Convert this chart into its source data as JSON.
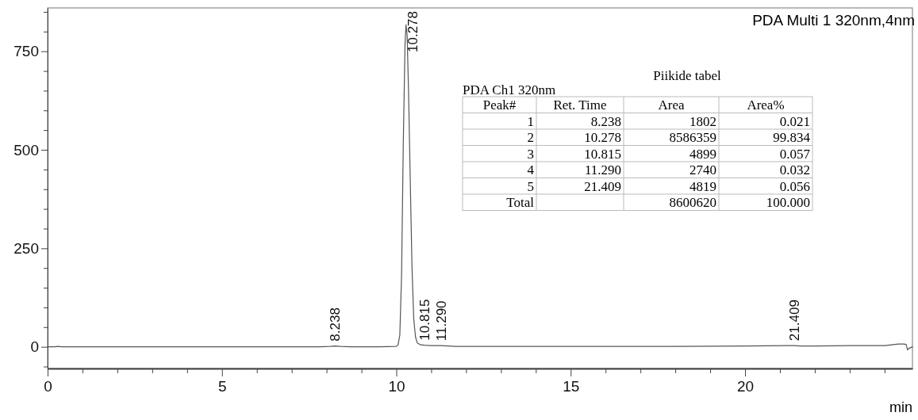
{
  "chart_data": {
    "type": "line",
    "title": "PDA Multi 1 320nm,4nm",
    "xlabel": "min",
    "x": [
      0,
      0.2,
      0.3,
      0.4,
      1,
      2,
      3,
      4,
      5,
      6,
      7,
      7.8,
      8.1,
      8.238,
      8.4,
      8.7,
      9.5,
      10.0,
      10.05,
      10.1,
      10.15,
      10.2,
      10.25,
      10.278,
      10.31,
      10.35,
      10.4,
      10.45,
      10.5,
      10.55,
      10.6,
      10.7,
      10.815,
      11,
      11.29,
      11.5,
      11.7,
      12,
      14,
      16,
      18,
      20,
      21.2,
      21.409,
      21.6,
      22,
      23,
      24,
      24.2,
      24.4,
      24.55,
      24.62,
      24.66,
      24.7,
      24.8
    ],
    "series": [
      {
        "color": "#555555",
        "values": [
          0,
          0,
          1,
          0,
          0,
          0,
          0,
          0,
          0,
          0,
          0,
          0,
          1,
          2,
          1,
          0,
          0,
          1,
          5,
          30,
          180,
          520,
          770,
          817,
          790,
          650,
          420,
          200,
          70,
          25,
          10,
          5,
          4,
          3,
          3,
          2,
          1,
          1,
          1,
          1,
          1,
          2,
          3,
          3,
          2,
          2,
          3,
          3,
          5,
          7,
          7,
          6,
          -8,
          -4,
          0
        ]
      }
    ],
    "xlim": [
      0,
      24.8
    ],
    "ylim": [
      -55,
      860
    ],
    "xticks": [
      0,
      {
        "value": 1,
        "label": null
      },
      {
        "value": 2,
        "label": null
      },
      {
        "value": 3,
        "label": null
      },
      {
        "value": 4,
        "label": null
      },
      5,
      {
        "value": 6,
        "label": null
      },
      {
        "value": 7,
        "label": null
      },
      {
        "value": 8,
        "label": null
      },
      {
        "value": 9,
        "label": null
      },
      10,
      {
        "value": 11,
        "label": null
      },
      {
        "value": 12,
        "label": null
      },
      {
        "value": 13,
        "label": null
      },
      {
        "value": 14,
        "label": null
      },
      15,
      {
        "value": 16,
        "label": null
      },
      {
        "value": 17,
        "label": null
      },
      {
        "value": 18,
        "label": null
      },
      {
        "value": 19,
        "label": null
      },
      20,
      {
        "value": 21,
        "label": null
      },
      {
        "value": 22,
        "label": null
      },
      {
        "value": 23,
        "label": null
      },
      {
        "value": 24,
        "label": null
      }
    ],
    "yticks": [
      {
        "value": -50,
        "label": null
      },
      0,
      {
        "value": 50,
        "label": null
      },
      {
        "value": 100,
        "label": null
      },
      {
        "value": 150,
        "label": null
      },
      {
        "value": 200,
        "label": null
      },
      250,
      {
        "value": 300,
        "label": null
      },
      {
        "value": 350,
        "label": null
      },
      {
        "value": 400,
        "label": null
      },
      {
        "value": 450,
        "label": null
      },
      500,
      {
        "value": 550,
        "label": null
      },
      {
        "value": 600,
        "label": null
      },
      {
        "value": 650,
        "label": null
      },
      {
        "value": 700,
        "label": null
      },
      750,
      {
        "value": 800,
        "label": null
      },
      {
        "value": 850,
        "label": null
      }
    ],
    "grid": false,
    "marker": "none",
    "line_style": "solid",
    "annotations": [
      {
        "text": "8.238",
        "x": 8.238,
        "y": 2
      },
      {
        "text": "10.278",
        "x": 10.278,
        "y": 817
      },
      {
        "text": "10.815",
        "x": 10.815,
        "y": 4
      },
      {
        "text": "11.290",
        "x": 11.29,
        "y": 3
      },
      {
        "text": "21.409",
        "x": 21.409,
        "y": 3
      },
      "Piikide tabel",
      "PDA Ch1 320nm",
      "Peak#",
      "Ret. Time",
      "Area",
      "Area%",
      "1",
      "8.238",
      "1802",
      "0.021",
      "2",
      "10.278",
      "8586359",
      "99.834",
      "3",
      "10.815",
      "4899",
      "0.057",
      "4",
      "11.290",
      "2740",
      "0.032",
      "5",
      "21.409",
      "4819",
      "0.056",
      "Total",
      "8600620",
      "100.000"
    ]
  }
}
